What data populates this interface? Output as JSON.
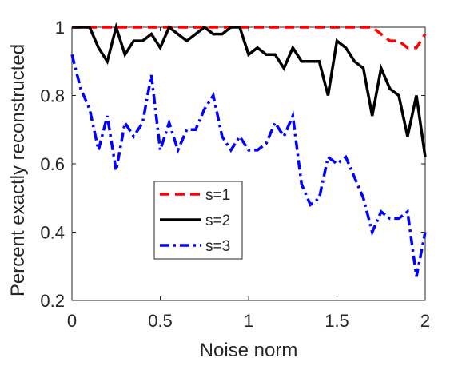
{
  "chart_data": {
    "type": "line",
    "title": "",
    "xlabel": "Noise norm",
    "ylabel": "Percent exactly reconstructed",
    "xlim": [
      0,
      2
    ],
    "ylim": [
      0.2,
      1.0
    ],
    "xticks": [
      0,
      0.5,
      1,
      1.5,
      2
    ],
    "xtick_labels": [
      "0",
      "0.5",
      "1",
      "1.5",
      "2"
    ],
    "yticks": [
      0.2,
      0.4,
      0.6,
      0.8,
      1.0
    ],
    "ytick_labels": [
      "0.2",
      "0.4",
      "0.6",
      "0.8",
      "1"
    ],
    "grid": false,
    "legend_position": "center-left",
    "x": [
      0.0,
      0.05,
      0.1,
      0.15,
      0.2,
      0.25,
      0.3,
      0.35,
      0.4,
      0.45,
      0.5,
      0.55,
      0.6,
      0.65,
      0.7,
      0.75,
      0.8,
      0.85,
      0.9,
      0.95,
      1.0,
      1.05,
      1.1,
      1.15,
      1.2,
      1.25,
      1.3,
      1.35,
      1.4,
      1.45,
      1.5,
      1.55,
      1.6,
      1.65,
      1.7,
      1.75,
      1.8,
      1.85,
      1.9,
      1.95,
      2.0
    ],
    "series": [
      {
        "name": "s=1",
        "color": "#ff0000",
        "dash": "dashed",
        "values": [
          1,
          1,
          1,
          1,
          1,
          1,
          1,
          1,
          1,
          1,
          1,
          1,
          1,
          1,
          1,
          1,
          1,
          1,
          1,
          1,
          1,
          1,
          1,
          1,
          1,
          1,
          1,
          1,
          1,
          1,
          1,
          1,
          1,
          1,
          1,
          0.98,
          0.96,
          0.96,
          0.94,
          0.94,
          0.98
        ]
      },
      {
        "name": "s=2",
        "color": "#000000",
        "dash": "solid",
        "values": [
          1,
          1,
          1,
          0.94,
          0.9,
          1.0,
          0.92,
          0.96,
          0.96,
          0.98,
          0.94,
          1.0,
          0.98,
          0.96,
          0.98,
          1.0,
          0.98,
          0.98,
          1.0,
          1.0,
          0.92,
          0.94,
          0.92,
          0.92,
          0.88,
          0.94,
          0.9,
          0.9,
          0.9,
          0.8,
          0.96,
          0.94,
          0.9,
          0.88,
          0.74,
          0.88,
          0.82,
          0.8,
          0.68,
          0.8,
          0.62
        ]
      },
      {
        "name": "s=3",
        "color": "#0000ff",
        "dash": "dashdot",
        "values": [
          0.92,
          0.82,
          0.76,
          0.64,
          0.74,
          0.58,
          0.72,
          0.68,
          0.72,
          0.86,
          0.64,
          0.72,
          0.64,
          0.7,
          0.7,
          0.76,
          0.8,
          0.68,
          0.64,
          0.68,
          0.64,
          0.64,
          0.66,
          0.72,
          0.68,
          0.74,
          0.54,
          0.48,
          0.5,
          0.62,
          0.6,
          0.62,
          0.56,
          0.5,
          0.4,
          0.46,
          0.44,
          0.44,
          0.46,
          0.27,
          0.4
        ]
      }
    ]
  }
}
